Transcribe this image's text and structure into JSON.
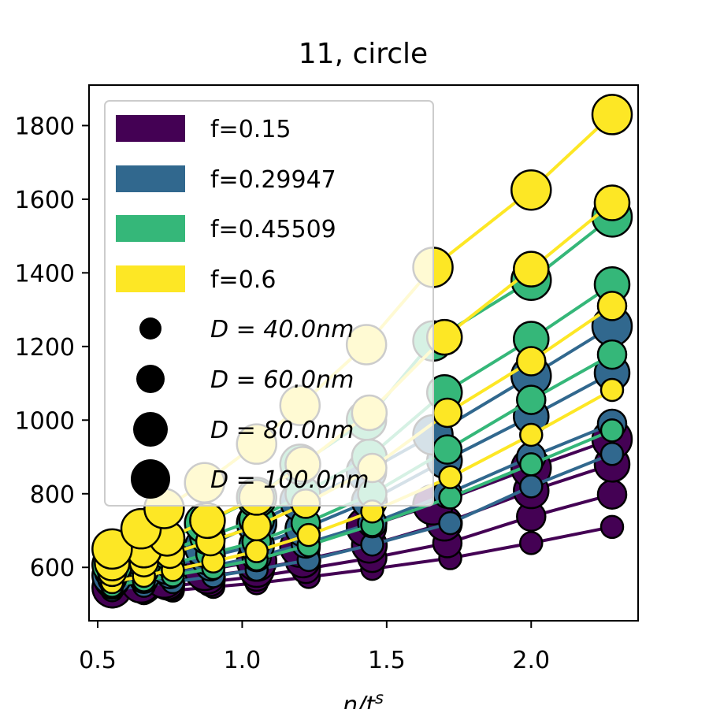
{
  "chart_data": {
    "type": "scatter",
    "title": "11, circle",
    "xlabel": "n/t^s",
    "ylabel": "",
    "xlim": [
      0.47,
      2.37
    ],
    "ylim": [
      455,
      1910
    ],
    "xticks": [
      {
        "v": 0.5,
        "label": "0.5"
      },
      {
        "v": 1.0,
        "label": "1.0"
      },
      {
        "v": 1.5,
        "label": "1.5"
      },
      {
        "v": 2.0,
        "label": "2.0"
      }
    ],
    "yticks": [
      {
        "v": 600,
        "label": "600"
      },
      {
        "v": 800,
        "label": "800"
      },
      {
        "v": 1000,
        "label": "1000"
      },
      {
        "v": 1200,
        "label": "1200"
      },
      {
        "v": 1400,
        "label": "1400"
      },
      {
        "v": 1600,
        "label": "1600"
      },
      {
        "v": 1800,
        "label": "1800"
      }
    ],
    "grid": false,
    "legend_position": "upper-left",
    "x_by_D": {
      "40": [
        0.55,
        0.66,
        0.76,
        0.9,
        1.05,
        1.23,
        1.45,
        1.72,
        2.0,
        2.28
      ],
      "60": [
        0.55,
        0.66,
        0.75,
        0.89,
        1.05,
        1.22,
        1.45,
        1.71,
        2.0,
        2.28
      ],
      "80": [
        0.55,
        0.66,
        0.74,
        0.88,
        1.05,
        1.21,
        1.44,
        1.7,
        2.0,
        2.28
      ],
      "100": [
        0.55,
        0.65,
        0.73,
        0.87,
        1.05,
        1.2,
        1.43,
        1.66,
        2.0,
        2.28
      ]
    },
    "series": [
      {
        "name": "f=0.15",
        "color": "#440154",
        "D": "40",
        "y": [
          522,
          530,
          537,
          547,
          557,
          574,
          596,
          625,
          666,
          710
        ]
      },
      {
        "name": "f=0.15",
        "color": "#440154",
        "D": "60",
        "y": [
          530,
          540,
          549,
          561,
          575,
          596,
          626,
          666,
          738,
          798
        ]
      },
      {
        "name": "f=0.15",
        "color": "#440154",
        "D": "80",
        "y": [
          538,
          550,
          560,
          576,
          594,
          620,
          660,
          720,
          808,
          880
        ]
      },
      {
        "name": "f=0.15",
        "color": "#440154",
        "D": "100",
        "y": [
          545,
          558,
          571,
          592,
          617,
          655,
          710,
          770,
          870,
          948
        ]
      },
      {
        "name": "f=0.29947",
        "color": "#31688e",
        "D": "40",
        "y": [
          538,
          550,
          560,
          576,
          594,
          620,
          662,
          720,
          820,
          908
        ]
      },
      {
        "name": "f=0.29947",
        "color": "#31688e",
        "D": "60",
        "y": [
          553,
          569,
          582,
          603,
          628,
          665,
          720,
          800,
          900,
          990
        ]
      },
      {
        "name": "f=0.29947",
        "color": "#31688e",
        "D": "80",
        "y": [
          565,
          585,
          602,
          628,
          660,
          705,
          780,
          890,
          1010,
          1128
        ]
      },
      {
        "name": "f=0.29947",
        "color": "#31688e",
        "D": "100",
        "y": [
          578,
          602,
          623,
          655,
          720,
          780,
          860,
          960,
          1120,
          1255
        ]
      },
      {
        "name": "f=0.45509",
        "color": "#35b779",
        "D": "40",
        "y": [
          550,
          565,
          578,
          598,
          622,
          660,
          715,
          790,
          880,
          972
        ]
      },
      {
        "name": "f=0.45509",
        "color": "#35b779",
        "D": "60",
        "y": [
          570,
          591,
          609,
          637,
          670,
          720,
          800,
          920,
          1055,
          1178
        ]
      },
      {
        "name": "f=0.45509",
        "color": "#35b779",
        "D": "80",
        "y": [
          590,
          618,
          644,
          683,
          730,
          800,
          900,
          1075,
          1220,
          1368
        ]
      },
      {
        "name": "f=0.45509",
        "color": "#35b779",
        "D": "100",
        "y": [
          607,
          642,
          673,
          720,
          790,
          880,
          1000,
          1215,
          1380,
          1552
        ]
      },
      {
        "name": "f=0.6",
        "color": "#fde725",
        "D": "40",
        "y": [
          560,
          577,
          593,
          616,
          644,
          688,
          752,
          845,
          960,
          1082
        ]
      },
      {
        "name": "f=0.6",
        "color": "#fde725",
        "D": "60",
        "y": [
          588,
          614,
          637,
          671,
          712,
          773,
          870,
          1020,
          1160,
          1310
        ]
      },
      {
        "name": "f=0.6",
        "color": "#fde725",
        "D": "80",
        "y": [
          612,
          647,
          679,
          727,
          790,
          880,
          1020,
          1225,
          1410,
          1590
        ]
      },
      {
        "name": "f=0.6",
        "color": "#fde725",
        "D": "100",
        "y": [
          650,
          705,
          760,
          830,
          935,
          1040,
          1205,
          1415,
          1625,
          1830
        ]
      }
    ],
    "legend": {
      "colors": [
        {
          "label": "f=0.15",
          "color": "#440154"
        },
        {
          "label": "f=0.29947",
          "color": "#31688e"
        },
        {
          "label": "f=0.45509",
          "color": "#35b779"
        },
        {
          "label": "f=0.6",
          "color": "#fde725"
        }
      ],
      "sizes": [
        {
          "label": "D = 40.0nm",
          "D": "40"
        },
        {
          "label": "D = 60.0nm",
          "D": "60"
        },
        {
          "label": "D = 80.0nm",
          "D": "80"
        },
        {
          "label": "D = 100.0nm",
          "D": "100"
        }
      ]
    }
  }
}
